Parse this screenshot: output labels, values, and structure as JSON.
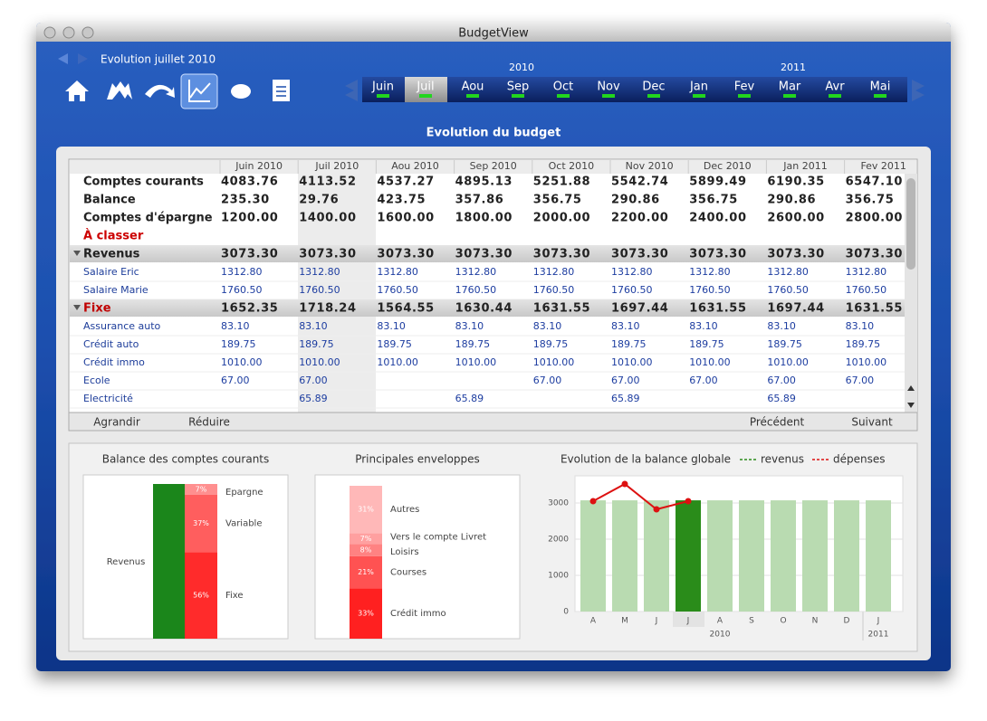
{
  "window": {
    "title": "BudgetView"
  },
  "navigation": {
    "period": "Evolution juillet 2010"
  },
  "timeline": {
    "years": [
      "2010",
      "2011"
    ],
    "months": [
      "Juin",
      "Juil",
      "Aou",
      "Sep",
      "Oct",
      "Nov",
      "Dec",
      "Jan",
      "Fev",
      "Mar",
      "Avr",
      "Mai"
    ]
  },
  "budget": {
    "title": "Evolution du budget",
    "columns": [
      "Juin 2010",
      "Juil 2010",
      "Aou 2010",
      "Sep 2010",
      "Oct 2010",
      "Nov 2010",
      "Dec 2010",
      "Jan 2011",
      "Fev 2011"
    ],
    "rows": [
      {
        "label": "Comptes courants",
        "kind": "summary",
        "values": [
          "4083.76",
          "4113.52",
          "4537.27",
          "4895.13",
          "5251.88",
          "5542.74",
          "5899.49",
          "6190.35",
          "6547.10"
        ]
      },
      {
        "label": "Balance",
        "kind": "summary",
        "values": [
          "235.30",
          "29.76",
          "423.75",
          "357.86",
          "356.75",
          "290.86",
          "356.75",
          "290.86",
          "356.75"
        ]
      },
      {
        "label": "Comptes d'épargne",
        "kind": "summary",
        "values": [
          "1200.00",
          "1400.00",
          "1600.00",
          "1800.00",
          "2000.00",
          "2200.00",
          "2400.00",
          "2600.00",
          "2800.00"
        ]
      },
      {
        "label": "À classer",
        "kind": "alert",
        "color": "#cc0000",
        "values": []
      },
      {
        "label": "Revenus",
        "kind": "group",
        "values": [
          "3073.30",
          "3073.30",
          "3073.30",
          "3073.30",
          "3073.30",
          "3073.30",
          "3073.30",
          "3073.30",
          "3073.30"
        ]
      },
      {
        "label": "Salaire Eric",
        "kind": "item",
        "values": [
          "1312.80",
          "1312.80",
          "1312.80",
          "1312.80",
          "1312.80",
          "1312.80",
          "1312.80",
          "1312.80",
          "1312.80"
        ]
      },
      {
        "label": "Salaire Marie",
        "kind": "item",
        "values": [
          "1760.50",
          "1760.50",
          "1760.50",
          "1760.50",
          "1760.50",
          "1760.50",
          "1760.50",
          "1760.50",
          "1760.50"
        ]
      },
      {
        "label": "Fixe",
        "kind": "group",
        "color": "#c00000",
        "values": [
          "1652.35",
          "1718.24",
          "1564.55",
          "1630.44",
          "1631.55",
          "1697.44",
          "1631.55",
          "1697.44",
          "1631.55"
        ]
      },
      {
        "label": "Assurance auto",
        "kind": "item",
        "values": [
          "83.10",
          "83.10",
          "83.10",
          "83.10",
          "83.10",
          "83.10",
          "83.10",
          "83.10",
          "83.10"
        ]
      },
      {
        "label": "Crédit auto",
        "kind": "item",
        "values": [
          "189.75",
          "189.75",
          "189.75",
          "189.75",
          "189.75",
          "189.75",
          "189.75",
          "189.75",
          "189.75"
        ]
      },
      {
        "label": "Crédit immo",
        "kind": "item",
        "values": [
          "1010.00",
          "1010.00",
          "1010.00",
          "1010.00",
          "1010.00",
          "1010.00",
          "1010.00",
          "1010.00",
          "1010.00"
        ]
      },
      {
        "label": "Ecole",
        "kind": "item",
        "values": [
          "67.00",
          "67.00",
          null,
          null,
          "67.00",
          "67.00",
          "67.00",
          "67.00",
          "67.00"
        ]
      },
      {
        "label": "Electricité",
        "kind": "item",
        "values": [
          null,
          "65.89",
          null,
          "65.89",
          null,
          "65.89",
          null,
          "65.89",
          null
        ]
      }
    ]
  },
  "actions": {
    "expand": "Agrandir",
    "collapse": "Réduire",
    "previous": "Précédent",
    "next": "Suivant"
  },
  "chart_data": [
    {
      "type": "stacked-bar",
      "title": "Balance des comptes courants",
      "ylim": [
        0,
        100
      ],
      "income": {
        "name": "Revenus",
        "color": "#1b861b",
        "value": 100
      },
      "series": [
        {
          "name": "Fixe",
          "color": "#ff2b2b",
          "values": [
            56
          ],
          "value_labels": [
            "56%"
          ]
        },
        {
          "name": "Variable",
          "color": "#ff5e5e",
          "values": [
            37
          ],
          "value_labels": [
            "37%"
          ]
        },
        {
          "name": "Epargne",
          "color": "#ff8f8f",
          "values": [
            7
          ],
          "value_labels": [
            "7%"
          ]
        }
      ]
    },
    {
      "type": "stacked-bar",
      "title": "Principales enveloppes",
      "ylim": [
        0,
        100
      ],
      "series": [
        {
          "name": "Crédit immo",
          "color": "#ff2020",
          "values": [
            33
          ],
          "value_labels": [
            "33%"
          ]
        },
        {
          "name": "Courses",
          "color": "#ff5252",
          "values": [
            21
          ],
          "value_labels": [
            "21%"
          ]
        },
        {
          "name": "Loisirs",
          "color": "#ff8282",
          "values": [
            8
          ],
          "value_labels": [
            "8%"
          ]
        },
        {
          "name": "Vers le compte Livret",
          "color": "#ffa0a0",
          "values": [
            7
          ],
          "value_labels": [
            "7%"
          ]
        },
        {
          "name": "Autres",
          "color": "#ffb8b8",
          "values": [
            31
          ],
          "value_labels": [
            "31%"
          ]
        }
      ]
    },
    {
      "type": "bar-line",
      "title": "Evolution de la balance globale",
      "categories": [
        "A",
        "M",
        "J",
        "J",
        "A",
        "S",
        "O",
        "N",
        "D",
        "J"
      ],
      "years": [
        "2010",
        "2011"
      ],
      "ylim": [
        0,
        3750
      ],
      "yticks": [
        0,
        1000,
        2000,
        3000
      ],
      "grid": true,
      "highlight_index": 3,
      "series": [
        {
          "name": "revenus",
          "type": "bar",
          "color": "#b9dbb1",
          "highlight_color": "#2a8c1a",
          "values": [
            3073.3,
            3073.3,
            3073.3,
            3073.3,
            3073.3,
            3073.3,
            3073.3,
            3073.3,
            3073.3,
            3073.3
          ]
        },
        {
          "name": "dépenses",
          "type": "line",
          "color": "#dd1111",
          "values": [
            3050,
            3525,
            2825,
            3050,
            null,
            null,
            null,
            null,
            null,
            null
          ]
        }
      ]
    }
  ]
}
